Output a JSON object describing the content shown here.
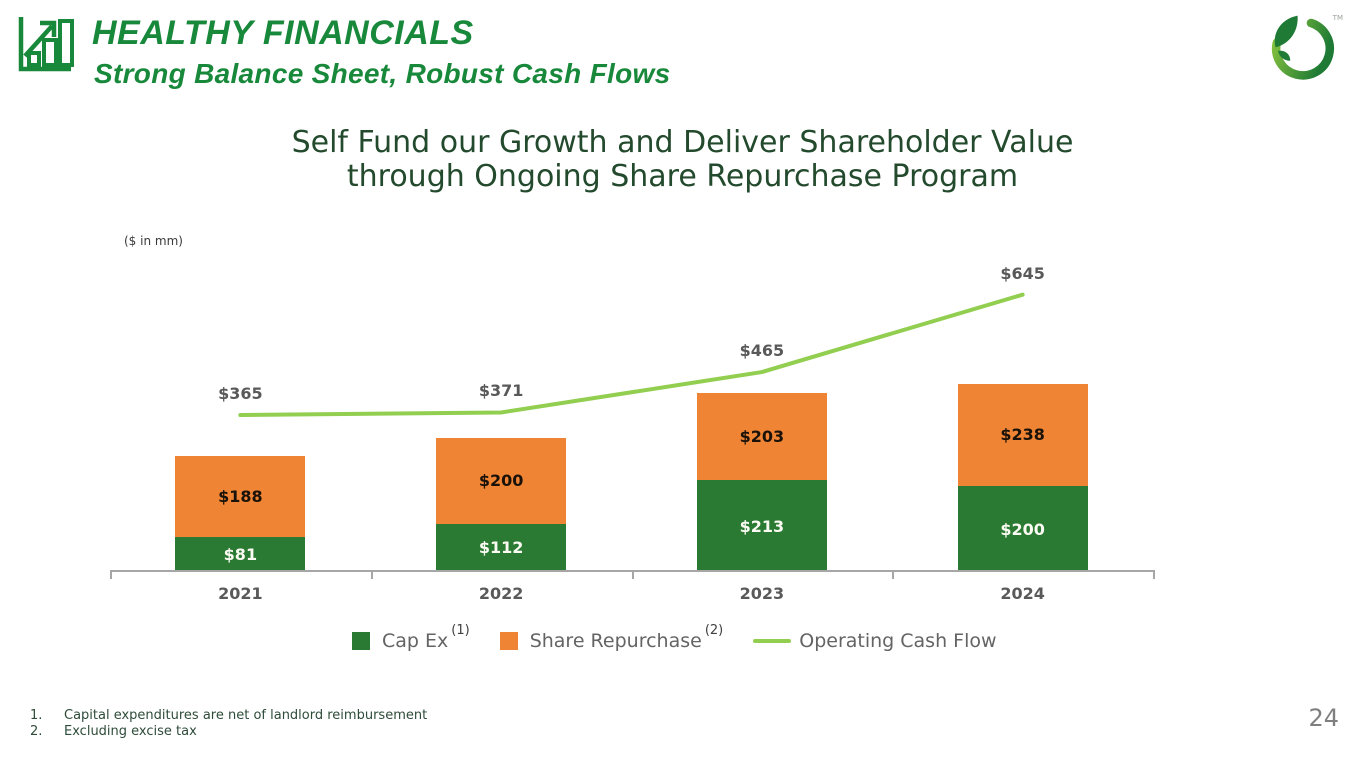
{
  "header": {
    "title": "HEALTHY FINANCIALS",
    "subtitle": "Strong Balance Sheet, Robust Cash Flows",
    "trademark": "TM",
    "accent_color": "#18883B"
  },
  "slide_title": {
    "line1": "Self Fund our Growth and Deliver Shareholder Value",
    "line2": "through Ongoing Share Repurchase Program"
  },
  "chart_data": {
    "type": "combo-stacked-bar-line",
    "units_label": "($ in mm)",
    "value_prefix": "$",
    "categories": [
      "2021",
      "2022",
      "2023",
      "2024"
    ],
    "series": [
      {
        "name": "Cap Ex",
        "type": "bar",
        "color": "#2B7A33",
        "label_color": "#FBFBF3",
        "values": [
          81,
          112,
          213,
          200
        ]
      },
      {
        "name": "Share Repurchase",
        "type": "bar",
        "color": "#EE8434",
        "label_color": "#1A1208",
        "values": [
          188,
          200,
          203,
          238
        ]
      },
      {
        "name": "Operating Cash Flow",
        "type": "line",
        "color": "#92CE4F",
        "label_color": "#595959",
        "values": [
          365,
          371,
          465,
          645
        ]
      }
    ],
    "ylim": [
      0,
      790
    ],
    "grid": false,
    "legend_position": "bottom",
    "axis_color": "#A6A6A6"
  },
  "legend": {
    "items": [
      {
        "label": "Cap Ex",
        "sup": "(1)",
        "color": "#2B7A33",
        "swatch": "square"
      },
      {
        "label": "Share Repurchase",
        "sup": "(2)",
        "color": "#EE8434",
        "swatch": "square"
      },
      {
        "label": "Operating Cash Flow",
        "sup": "",
        "color": "#92CE4F",
        "swatch": "line"
      }
    ]
  },
  "footnotes": [
    {
      "num": "1.",
      "text": "Capital expenditures are net of landlord reimbursement"
    },
    {
      "num": "2.",
      "text": "Excluding excise tax"
    }
  ],
  "page_number": "24"
}
